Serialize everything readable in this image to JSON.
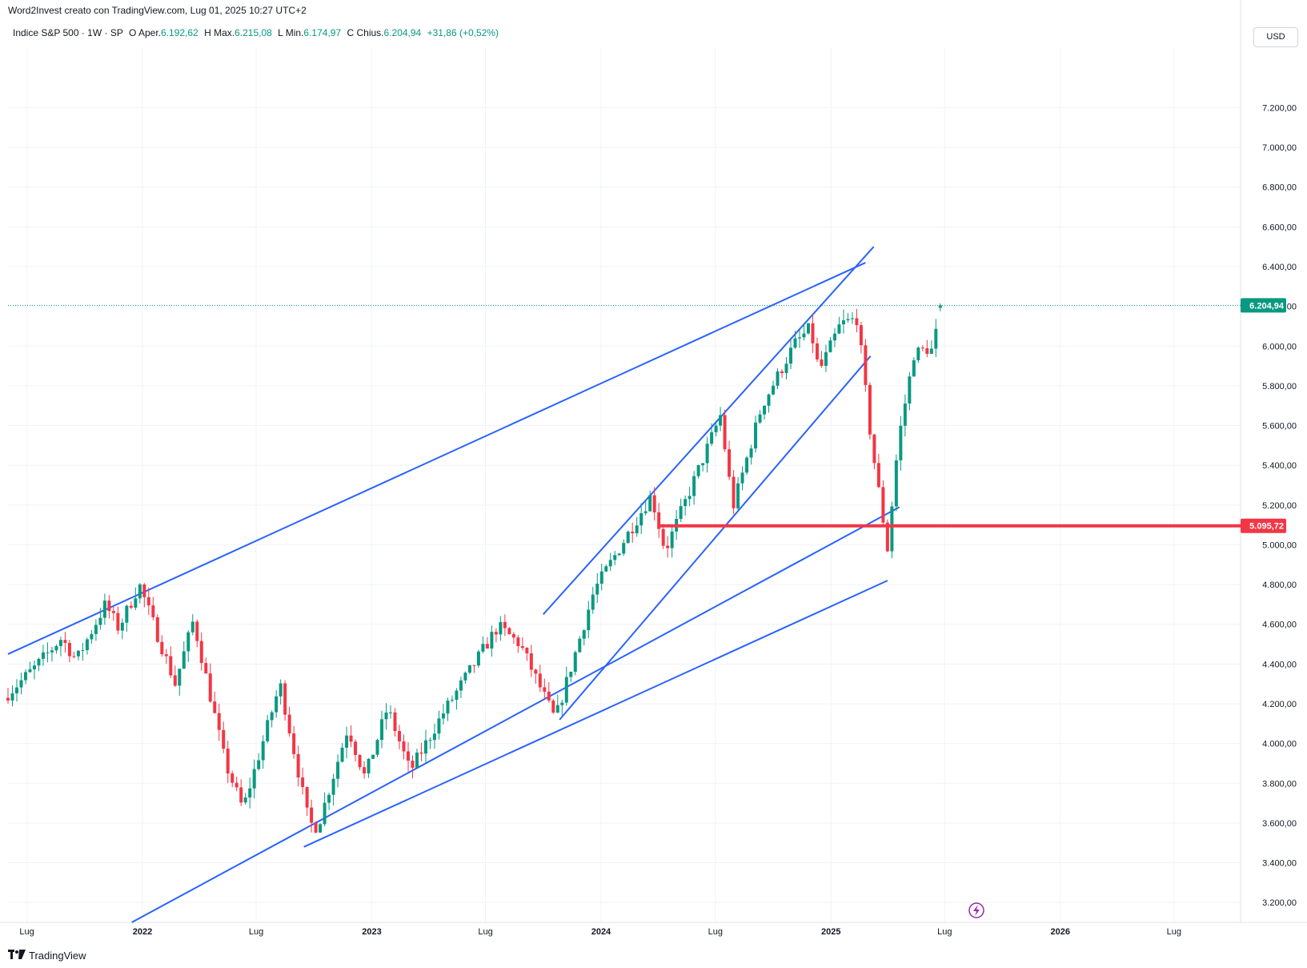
{
  "header": {
    "caption": "Word2Invest creato con TradingView.com, Lug 01, 2025 10:27 UTC+2",
    "symbol": "Indice S&P 500 · 1W · SP",
    "o_label": "O",
    "open_label": "Aper.",
    "open": "6.192,62",
    "h_label": "H",
    "high_label": "Max.",
    "high": "6.215,08",
    "l_label": "L",
    "low_label": "Min.",
    "low": "6.174,97",
    "c_label": "C",
    "close_label": "Chius.",
    "close": "6.204,94",
    "change": "+31,86 (+0,52%)",
    "currency": "USD"
  },
  "footer": {
    "brand": "TradingView"
  },
  "colors": {
    "up": "#089981",
    "down": "#f23645",
    "trendline": "#2962ff",
    "level": "#f23645"
  },
  "icons": {
    "quick-action": "lightning-icon",
    "brand-logo": "tradingview-logo-icon"
  },
  "chart_data": {
    "type": "candlestick",
    "interval": "1W",
    "y_axis": {
      "min": 3100,
      "max": 7500,
      "ticks": [
        3200,
        3400,
        3600,
        3800,
        4000,
        4200,
        4400,
        4600,
        4800,
        5000,
        5200,
        5400,
        5600,
        5800,
        6000,
        6200,
        6400,
        6600,
        6800,
        7000,
        7200
      ],
      "tick_labels": [
        "3.200,00",
        "3.400,00",
        "3.600,00",
        "3.800,00",
        "4.000,00",
        "4.200,00",
        "4.400,00",
        "4.600,00",
        "4.800,00",
        "5.000,00",
        "5.200,00",
        "5.400,00",
        "5.600,00",
        "5.800,00",
        "6.000,00",
        "6.200,00",
        "6.400,00",
        "6.600,00",
        "6.800,00",
        "7.000,00",
        "7.200,00"
      ]
    },
    "x_axis": {
      "start": "2021-06-01",
      "end": "2026-10-15",
      "ticks": [
        {
          "date": "2021-07-01",
          "label": "Lug"
        },
        {
          "date": "2022-01-01",
          "label": "2022"
        },
        {
          "date": "2022-07-01",
          "label": "Lug"
        },
        {
          "date": "2023-01-01",
          "label": "2023"
        },
        {
          "date": "2023-07-01",
          "label": "Lug"
        },
        {
          "date": "2024-01-01",
          "label": "2024"
        },
        {
          "date": "2024-07-01",
          "label": "Lug"
        },
        {
          "date": "2025-01-01",
          "label": "2025"
        },
        {
          "date": "2025-07-01",
          "label": "Lug"
        },
        {
          "date": "2026-01-01",
          "label": "2026"
        },
        {
          "date": "2026-07-01",
          "label": "Lug"
        }
      ]
    },
    "price_line": {
      "value": 6204.94,
      "label": "6.204,94"
    },
    "level_line": {
      "value": 5095.72,
      "label": "5.095,72",
      "from": "2024-04-01"
    },
    "trendlines": [
      {
        "from": [
          "2021-06-01",
          4450
        ],
        "to": [
          "2025-02-25",
          6420
        ]
      },
      {
        "from": [
          "2021-12-15",
          3100
        ],
        "to": [
          "2025-04-20",
          5190
        ]
      },
      {
        "from": [
          "2022-09-15",
          3480
        ],
        "to": [
          "2025-04-01",
          4820
        ]
      },
      {
        "from": [
          "2023-10-01",
          4650
        ],
        "to": [
          "2025-03-10",
          6500
        ]
      },
      {
        "from": [
          "2023-10-27",
          4120
        ],
        "to": [
          "2025-03-05",
          5950
        ]
      }
    ],
    "anchors": [
      [
        "2021-06-01",
        4230
      ],
      [
        "2021-07-20",
        4380
      ],
      [
        "2021-09-01",
        4530
      ],
      [
        "2021-09-25",
        4420
      ],
      [
        "2021-11-10",
        4700
      ],
      [
        "2021-12-01",
        4580
      ],
      [
        "2022-01-03",
        4800
      ],
      [
        "2022-03-01",
        4300
      ],
      [
        "2022-03-30",
        4620
      ],
      [
        "2022-05-20",
        3900
      ],
      [
        "2022-06-17",
        3670
      ],
      [
        "2022-08-15",
        4300
      ],
      [
        "2022-09-30",
        3600
      ],
      [
        "2022-10-14",
        3580
      ],
      [
        "2022-12-01",
        4080
      ],
      [
        "2022-12-28",
        3830
      ],
      [
        "2023-02-02",
        4180
      ],
      [
        "2023-03-10",
        3860
      ],
      [
        "2023-05-01",
        4150
      ],
      [
        "2023-07-28",
        4590
      ],
      [
        "2023-09-01",
        4500
      ],
      [
        "2023-10-27",
        4120
      ],
      [
        "2023-12-28",
        4770
      ],
      [
        "2024-02-15",
        5030
      ],
      [
        "2024-03-28",
        5250
      ],
      [
        "2024-04-19",
        4970
      ],
      [
        "2024-06-01",
        5300
      ],
      [
        "2024-07-16",
        5650
      ],
      [
        "2024-08-05",
        5190
      ],
      [
        "2024-09-20",
        5700
      ],
      [
        "2024-11-11",
        6010
      ],
      [
        "2024-12-06",
        6090
      ],
      [
        "2024-12-20",
        5870
      ],
      [
        "2025-01-23",
        6110
      ],
      [
        "2025-02-19",
        6140
      ],
      [
        "2025-03-13",
        5520
      ],
      [
        "2025-04-08",
        4980
      ],
      [
        "2025-04-25",
        5520
      ],
      [
        "2025-05-20",
        5960
      ],
      [
        "2025-06-13",
        5990
      ],
      [
        "2025-06-20",
        5970
      ],
      [
        "2025-06-30",
        6205
      ]
    ]
  }
}
